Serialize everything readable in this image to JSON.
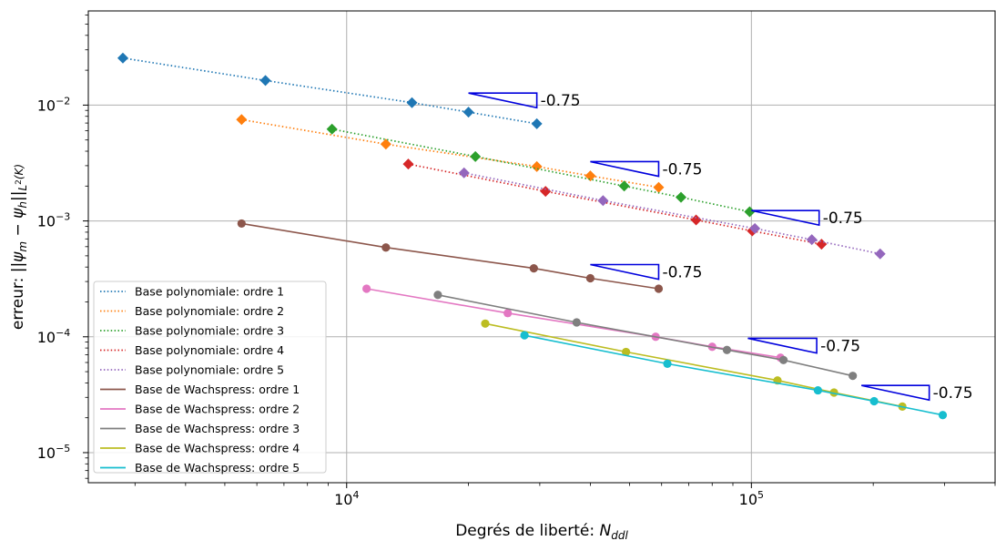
{
  "chart_data": {
    "type": "line",
    "xlabel": "Degrés de liberté: ",
    "xlabel_math": "N",
    "xlabel_sub": "ddl",
    "ylabel": "erreur: ||ψm − ψh||L²(K)",
    "xscale": "log",
    "yscale": "log",
    "xlim": [
      2300,
      400000
    ],
    "ylim": [
      5.5e-06,
      0.065
    ],
    "x_ticks": [
      {
        "value": 10000,
        "base": "10",
        "exp": "4"
      },
      {
        "value": 100000,
        "base": "10",
        "exp": "5"
      }
    ],
    "y_ticks": [
      {
        "value": 0.01,
        "base": "10",
        "exp": "−2"
      },
      {
        "value": 0.001,
        "base": "10",
        "exp": "−3"
      },
      {
        "value": 0.0001,
        "base": "10",
        "exp": "−4"
      },
      {
        "value": 1e-05,
        "base": "10",
        "exp": "−5"
      }
    ],
    "grid": true,
    "legend_position": "lower-left",
    "series": [
      {
        "name": "Base polynomiale: ordre 1",
        "color": "#1f77b4",
        "linestyle": "dotted",
        "marker": "diamond",
        "x": [
          2800,
          6300,
          14500,
          20000,
          29500
        ],
        "y": [
          0.0255,
          0.0163,
          0.0105,
          0.0087,
          0.0069
        ]
      },
      {
        "name": "Base polynomiale: ordre 2",
        "color": "#ff7f0e",
        "linestyle": "dotted",
        "marker": "diamond",
        "x": [
          5500,
          12500,
          29500,
          40000,
          59000
        ],
        "y": [
          0.0075,
          0.0046,
          0.00295,
          0.00245,
          0.00195
        ]
      },
      {
        "name": "Base polynomiale: ordre 3",
        "color": "#2ca02c",
        "linestyle": "dotted",
        "marker": "diamond",
        "x": [
          9200,
          20800,
          48500,
          67000,
          99000
        ],
        "y": [
          0.0062,
          0.0036,
          0.002,
          0.0016,
          0.0012
        ]
      },
      {
        "name": "Base polynomiale: ordre 4",
        "color": "#d62728",
        "linestyle": "dotted",
        "marker": "diamond",
        "x": [
          14200,
          31000,
          73000,
          100500,
          149000
        ],
        "y": [
          0.0031,
          0.0018,
          0.00102,
          0.00082,
          0.00063
        ]
      },
      {
        "name": "Base polynomiale: ordre 5",
        "color": "#9467bd",
        "linestyle": "dotted",
        "marker": "diamond",
        "x": [
          19500,
          43000,
          102000,
          141000,
          208000
        ],
        "y": [
          0.0026,
          0.0015,
          0.00086,
          0.00069,
          0.00052
        ]
      },
      {
        "name": "Base de Wachspress: ordre 1",
        "color": "#8c564b",
        "linestyle": "solid",
        "marker": "circle",
        "x": [
          5500,
          12500,
          29000,
          40000,
          59000
        ],
        "y": [
          0.00095,
          0.00059,
          0.00039,
          0.00032,
          0.00026
        ]
      },
      {
        "name": "Base de Wachspress: ordre 2",
        "color": "#e377c2",
        "linestyle": "solid",
        "marker": "circle",
        "x": [
          11200,
          25000,
          58000,
          80000,
          118000
        ],
        "y": [
          0.00026,
          0.00016,
          0.0001,
          8.2e-05,
          6.6e-05
        ]
      },
      {
        "name": "Base de Wachspress: ordre 3",
        "color": "#7f7f7f",
        "linestyle": "solid",
        "marker": "circle",
        "x": [
          16800,
          37000,
          87000,
          120000,
          178000
        ],
        "y": [
          0.00023,
          0.000133,
          7.7e-05,
          6.3e-05,
          4.6e-05
        ]
      },
      {
        "name": "Base de Wachspress: ordre 4",
        "color": "#bcbd22",
        "linestyle": "solid",
        "marker": "circle",
        "x": [
          22000,
          49000,
          116000,
          160000,
          236000
        ],
        "y": [
          0.00013,
          7.4e-05,
          4.2e-05,
          3.3e-05,
          2.5e-05
        ]
      },
      {
        "name": "Base de Wachspress: ordre 5",
        "color": "#17becf",
        "linestyle": "solid",
        "marker": "circle",
        "x": [
          27500,
          62000,
          146000,
          201000,
          297000
        ],
        "y": [
          0.000103,
          5.85e-05,
          3.45e-05,
          2.78e-05,
          2.11e-05
        ]
      }
    ],
    "slope_annotations": [
      {
        "label": "-0.75",
        "x0": 20000,
        "x1": 29500,
        "y_top": 0.0127
      },
      {
        "label": "-0.75",
        "x0": 40000,
        "x1": 59000,
        "y_top": 0.00325
      },
      {
        "label": "-0.75",
        "x0": 100000,
        "x1": 147000,
        "y_top": 0.00123
      },
      {
        "label": "-0.75",
        "x0": 40000,
        "x1": 59000,
        "y_top": 0.00042
      },
      {
        "label": "-0.75",
        "x0": 98000,
        "x1": 145000,
        "y_top": 9.7e-05
      },
      {
        "label": "-0.75",
        "x0": 187000,
        "x1": 275000,
        "y_top": 3.8e-05
      }
    ]
  }
}
